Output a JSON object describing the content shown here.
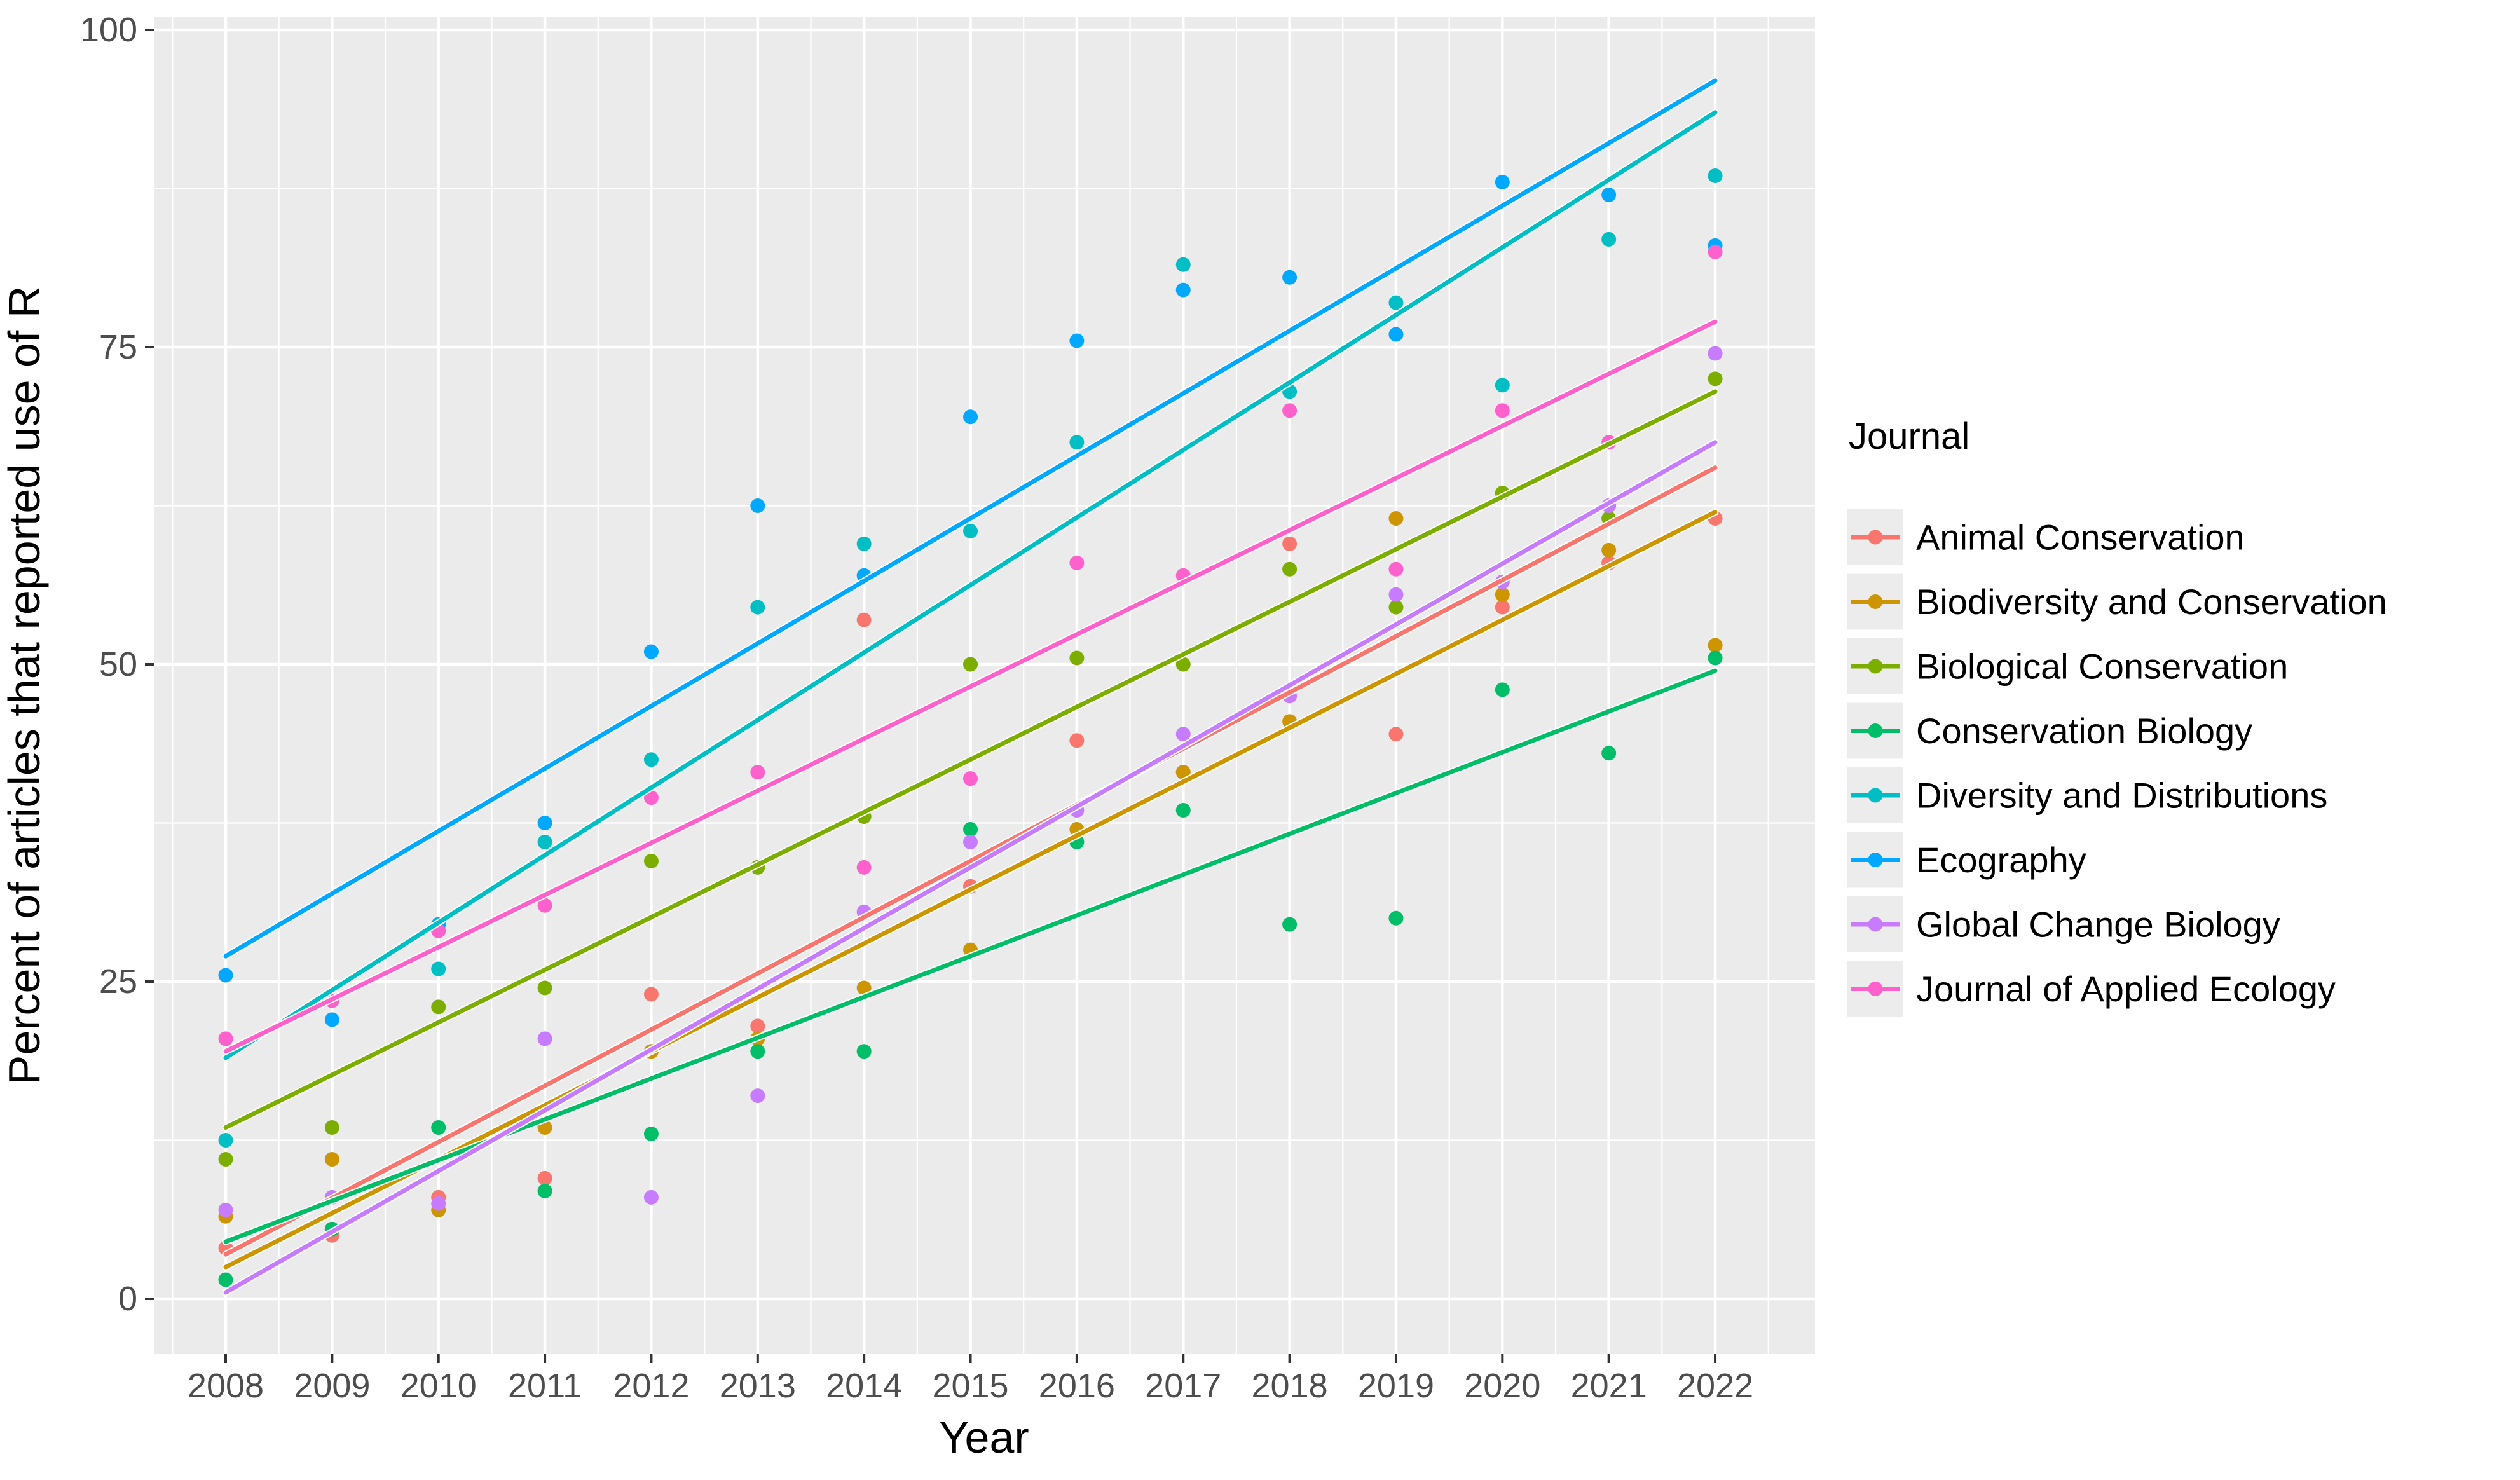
{
  "chart_data": {
    "type": "scatter",
    "title": "",
    "x_label": "Year",
    "y_label": "Percent of articles that reported use of R",
    "legend_title": "Journal",
    "x_ticks": [
      2008,
      2009,
      2010,
      2011,
      2012,
      2013,
      2014,
      2015,
      2016,
      2017,
      2018,
      2019,
      2020,
      2021,
      2022
    ],
    "y_ticks": [
      0,
      25,
      50,
      75,
      100
    ],
    "ylim": [
      0,
      100
    ],
    "grid": "major-minor",
    "legend_position": "right",
    "years": [
      2008,
      2009,
      2010,
      2011,
      2012,
      2013,
      2014,
      2015,
      2016,
      2017,
      2018,
      2019,
      2020,
      2021,
      2022
    ],
    "series": [
      {
        "name": "Animal Conservation",
        "color": "#F8766D",
        "values": [
          4,
          5,
          8,
          9.5,
          24,
          21.5,
          53.5,
          32.5,
          44,
          41.5,
          59.5,
          44.5,
          54.5,
          58,
          61.5
        ],
        "trend_2008": 3.5,
        "trend_2022": 65.5
      },
      {
        "name": "Biodiversity and Conservation",
        "color": "#CD9600",
        "values": [
          6.5,
          11,
          7,
          13.5,
          19.5,
          20.5,
          24.5,
          27.5,
          37,
          41.5,
          45.5,
          61.5,
          55.5,
          59,
          51.5
        ],
        "trend_2008": 2.5,
        "trend_2022": 62
      },
      {
        "name": "Biological Conservation",
        "color": "#7CAE00",
        "values": [
          11,
          13.5,
          23,
          24.5,
          34.5,
          34,
          38,
          50,
          50.5,
          50,
          57.5,
          54.5,
          63.5,
          61.5,
          72.5
        ],
        "trend_2008": 13.5,
        "trend_2022": 71.5
      },
      {
        "name": "Conservation Biology",
        "color": "#00BE67",
        "values": [
          1.5,
          5.5,
          13.5,
          8.5,
          13,
          19.5,
          19.5,
          37,
          36,
          38.5,
          29.5,
          30,
          48,
          43,
          50.5
        ],
        "trend_2008": 4.5,
        "trend_2022": 49.5
      },
      {
        "name": "Diversity and Distributions",
        "color": "#00BFC4",
        "values": [
          12.5,
          23.5,
          26,
          36,
          42.5,
          54.5,
          59.5,
          60.5,
          67.5,
          81.5,
          71.5,
          78.5,
          72,
          83.5,
          88.5
        ],
        "trend_2008": 19,
        "trend_2022": 93.5
      },
      {
        "name": "Ecography",
        "color": "#00A9FF",
        "values": [
          25.5,
          22,
          29.5,
          37.5,
          51,
          62.5,
          57,
          69.5,
          75.5,
          79.5,
          80.5,
          76,
          88,
          87,
          83
        ],
        "trend_2008": 27,
        "trend_2022": 96
      },
      {
        "name": "Global Change Biology",
        "color": "#C77CFF",
        "values": [
          7,
          8,
          7.5,
          20.5,
          8,
          16,
          30.5,
          36,
          38.5,
          44.5,
          47.5,
          55.5,
          56.5,
          62.5,
          74.5
        ],
        "trend_2008": 0.5,
        "trend_2022": 67.5
      },
      {
        "name": "Journal of Applied Ecology",
        "color": "#FF61CC",
        "values": [
          20.5,
          23.5,
          29,
          31,
          39.5,
          41.5,
          34,
          41,
          58,
          57,
          70,
          57.5,
          70,
          67.5,
          82.5
        ],
        "trend_2008": 19.5,
        "trend_2022": 77
      }
    ],
    "panel_background": "#EBEBEB",
    "gridline_color": "#FFFFFF",
    "tick_label_color": "#4D4D4D"
  }
}
